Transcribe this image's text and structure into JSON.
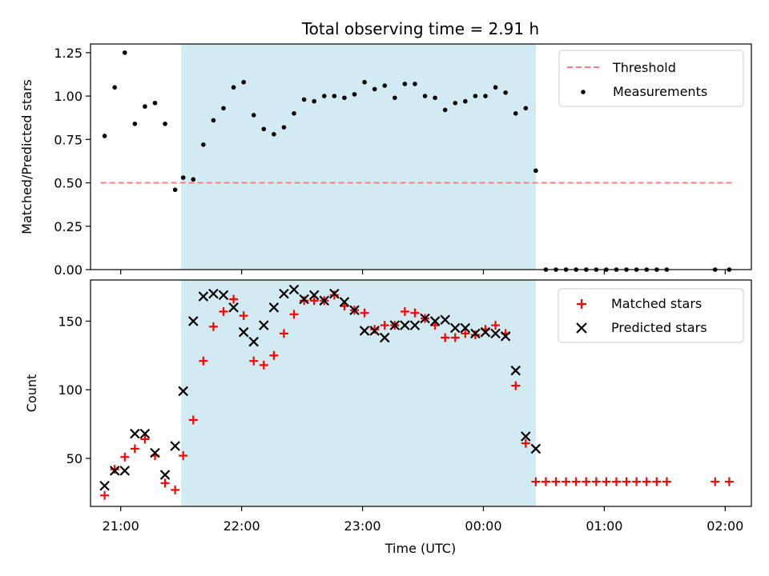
{
  "chart_data": [
    {
      "type": "scatter",
      "title": "Total observing time = 2.91 h",
      "xlabel": "",
      "ylabel": "Matched/Predicted stars",
      "ylim": [
        0.0,
        1.3
      ],
      "xlim": [
        "20:45",
        "02:13"
      ],
      "x_tick_labels": [
        "21:00",
        "22:00",
        "23:00",
        "00:00",
        "01:00",
        "02:00"
      ],
      "y_tick_labels": [
        "0.00",
        "0.25",
        "0.50",
        "0.75",
        "1.00",
        "1.25"
      ],
      "legend_placement": "upper right",
      "shaded_region": {
        "x_start": "21:30",
        "x_end": "00:26",
        "color": "#add8e6"
      },
      "series": [
        {
          "name": "Threshold",
          "style": "dashed-line",
          "color": "#ff7f7f",
          "x": [
            "20:50",
            "02:05"
          ],
          "y": [
            0.5,
            0.5
          ]
        },
        {
          "name": "Measurements",
          "style": "dot",
          "color": "#000000",
          "x": [
            "20:52",
            "20:57",
            "21:02",
            "21:07",
            "21:12",
            "21:17",
            "21:22",
            "21:27",
            "21:31",
            "21:36",
            "21:41",
            "21:46",
            "21:51",
            "21:56",
            "22:01",
            "22:06",
            "22:11",
            "22:16",
            "22:21",
            "22:26",
            "22:31",
            "22:36",
            "22:41",
            "22:46",
            "22:51",
            "22:56",
            "23:01",
            "23:06",
            "23:11",
            "23:16",
            "23:21",
            "23:26",
            "23:31",
            "23:36",
            "23:41",
            "23:46",
            "23:51",
            "23:56",
            "00:01",
            "00:06",
            "00:11",
            "00:16",
            "00:21",
            "00:26",
            "00:31",
            "00:36",
            "00:41",
            "00:46",
            "00:51",
            "00:56",
            "01:01",
            "01:06",
            "01:11",
            "01:16",
            "01:21",
            "01:26",
            "01:31",
            "01:55",
            "02:02"
          ],
          "y": [
            0.77,
            1.05,
            1.25,
            0.84,
            0.94,
            0.96,
            0.84,
            0.46,
            0.53,
            0.52,
            0.72,
            0.86,
            0.93,
            1.05,
            1.08,
            0.89,
            0.81,
            0.78,
            0.82,
            0.9,
            0.98,
            0.97,
            1.0,
            1.0,
            0.99,
            1.01,
            1.08,
            1.04,
            1.06,
            0.99,
            1.07,
            1.07,
            1.0,
            0.99,
            0.92,
            0.96,
            0.97,
            1.0,
            1.0,
            1.05,
            1.02,
            0.9,
            0.93,
            0.57,
            0.0,
            0.0,
            0.0,
            0.0,
            0.0,
            0.0,
            0.0,
            0.0,
            0.0,
            0.0,
            0.0,
            0.0,
            0.0,
            0.0,
            0.0
          ]
        }
      ]
    },
    {
      "type": "scatter",
      "title": "",
      "xlabel": "Time (UTC)",
      "ylabel": "Count",
      "ylim": [
        15,
        180
      ],
      "xlim": [
        "20:45",
        "02:13"
      ],
      "x_tick_labels": [
        "21:00",
        "22:00",
        "23:00",
        "00:00",
        "01:00",
        "02:00"
      ],
      "y_tick_labels": [
        "50",
        "100",
        "150"
      ],
      "legend_placement": "upper right",
      "shaded_region": {
        "x_start": "21:30",
        "x_end": "00:26",
        "color": "#add8e6"
      },
      "series": [
        {
          "name": "Matched stars",
          "marker": "plus",
          "color": "#ff0000",
          "x": [
            "20:52",
            "20:57",
            "21:02",
            "21:07",
            "21:12",
            "21:17",
            "21:22",
            "21:27",
            "21:31",
            "21:36",
            "21:41",
            "21:46",
            "21:51",
            "21:56",
            "22:01",
            "22:06",
            "22:11",
            "22:16",
            "22:21",
            "22:26",
            "22:31",
            "22:36",
            "22:41",
            "22:46",
            "22:51",
            "22:56",
            "23:01",
            "23:06",
            "23:11",
            "23:16",
            "23:21",
            "23:26",
            "23:31",
            "23:36",
            "23:41",
            "23:46",
            "23:51",
            "23:56",
            "00:01",
            "00:06",
            "00:11",
            "00:16",
            "00:21",
            "00:26",
            "00:31",
            "00:36",
            "00:41",
            "00:46",
            "00:51",
            "00:56",
            "01:01",
            "01:06",
            "01:11",
            "01:16",
            "01:21",
            "01:26",
            "01:31",
            "01:55",
            "02:02"
          ],
          "y": [
            23,
            42,
            51,
            57,
            64,
            52,
            32,
            27,
            52,
            78,
            121,
            146,
            157,
            166,
            154,
            121,
            118,
            125,
            141,
            155,
            165,
            165,
            165,
            169,
            161,
            158,
            156,
            144,
            147,
            147,
            157,
            156,
            152,
            147,
            138,
            138,
            141,
            140,
            144,
            147,
            141,
            103,
            61,
            33,
            33,
            33,
            33,
            33,
            33,
            33,
            33,
            33,
            33,
            33,
            33,
            33,
            33,
            33,
            33
          ]
        },
        {
          "name": "Predicted stars",
          "marker": "x",
          "color": "#000000",
          "x": [
            "20:52",
            "20:57",
            "21:02",
            "21:07",
            "21:12",
            "21:17",
            "21:22",
            "21:27",
            "21:31",
            "21:36",
            "21:41",
            "21:46",
            "21:51",
            "21:56",
            "22:01",
            "22:06",
            "22:11",
            "22:16",
            "22:21",
            "22:26",
            "22:31",
            "22:36",
            "22:41",
            "22:46",
            "22:51",
            "22:56",
            "23:01",
            "23:06",
            "23:11",
            "23:16",
            "23:21",
            "23:26",
            "23:31",
            "23:36",
            "23:41",
            "23:46",
            "23:51",
            "23:56",
            "00:01",
            "00:06",
            "00:11",
            "00:16",
            "00:21",
            "00:26"
          ],
          "y": [
            30,
            41,
            41,
            68,
            68,
            54,
            38,
            59,
            99,
            150,
            168,
            170,
            169,
            160,
            142,
            135,
            147,
            160,
            170,
            173,
            166,
            169,
            165,
            170,
            164,
            158,
            143,
            143,
            138,
            147,
            147,
            147,
            152,
            150,
            151,
            145,
            145,
            141,
            142,
            141,
            139,
            114,
            66,
            57
          ]
        }
      ]
    }
  ]
}
